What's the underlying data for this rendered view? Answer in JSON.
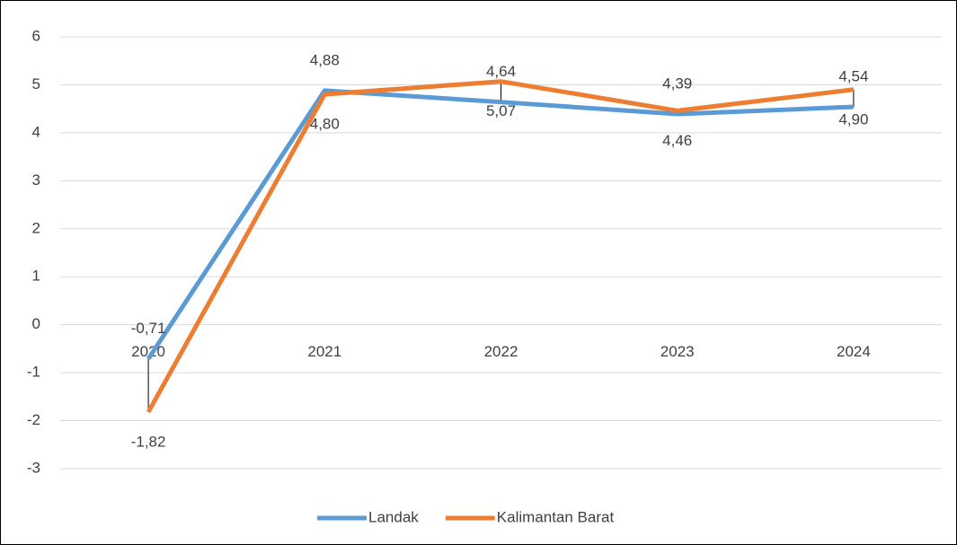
{
  "chart_data": {
    "type": "line",
    "categories": [
      "2020",
      "2021",
      "2022",
      "2023",
      "2024"
    ],
    "series": [
      {
        "name": "Landak",
        "color": "#5b9bd5",
        "values": [
          -0.71,
          4.88,
          4.64,
          4.39,
          4.54
        ],
        "value_labels": [
          "-0,71",
          "4,88",
          "4,64",
          "4,39",
          "4,54"
        ]
      },
      {
        "name": "Kalimantan Barat",
        "color": "#ed7d31",
        "values": [
          -1.82,
          4.8,
          5.07,
          4.46,
          4.9
        ],
        "value_labels": [
          "-1,82",
          "4,80",
          "5,07",
          "4,46",
          "4,90"
        ]
      }
    ],
    "ylim": [
      -3,
      6
    ],
    "yticks": [
      -3,
      -2,
      -1,
      0,
      1,
      2,
      3,
      4,
      5,
      6
    ],
    "grid": true,
    "legend": "bottom",
    "high_low_lines": true
  }
}
